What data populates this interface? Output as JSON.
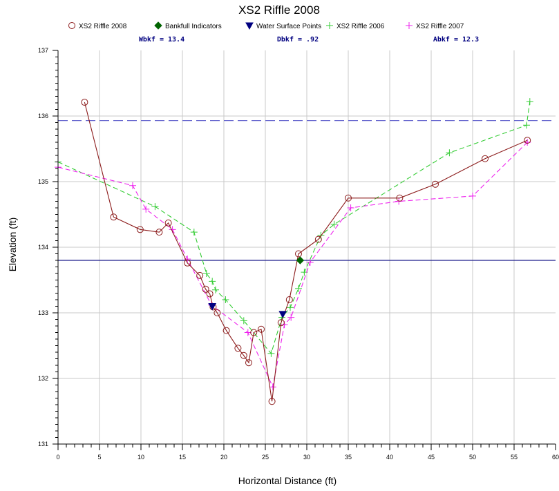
{
  "chart_data": {
    "type": "line",
    "title": "XS2 Riffle 2008",
    "xlabel": "Horizontal Distance (ft)",
    "ylabel": "Elevation (ft)",
    "xlim": [
      0,
      60
    ],
    "ylim": [
      131,
      137
    ],
    "x_ticks": [
      "0",
      "5",
      "10",
      "15",
      "20",
      "25",
      "30",
      "35",
      "40",
      "45",
      "50",
      "55",
      "60"
    ],
    "y_ticks": [
      "131",
      "132",
      "133",
      "134",
      "135",
      "136",
      "137"
    ],
    "grid": true,
    "legend_position": "top",
    "stats": [
      {
        "label": "Wbkf = 13.4"
      },
      {
        "label": "Dbkf = .92"
      },
      {
        "label": "Abkf = 12.3"
      }
    ],
    "reference_lines": [
      {
        "y": 135.93,
        "style": "dashed",
        "color": "#6a6ad0"
      },
      {
        "y": 133.8,
        "style": "solid",
        "color": "#1c1c8c"
      }
    ],
    "series": [
      {
        "name": "XS2 Riffle 2008",
        "color": "#8b1a1a",
        "marker": "circle",
        "line": "solid",
        "points": [
          [
            3.2,
            136.21
          ],
          [
            6.7,
            134.46
          ],
          [
            9.9,
            134.27
          ],
          [
            12.2,
            134.23
          ],
          [
            13.3,
            134.37
          ],
          [
            15.6,
            133.76
          ],
          [
            17.1,
            133.57
          ],
          [
            17.8,
            133.36
          ],
          [
            18.3,
            133.29
          ],
          [
            18.7,
            133.09
          ],
          [
            19.2,
            133.0
          ],
          [
            20.3,
            132.73
          ],
          [
            21.7,
            132.46
          ],
          [
            22.4,
            132.35
          ],
          [
            23.0,
            132.24
          ],
          [
            23.6,
            132.7
          ],
          [
            24.5,
            132.75
          ],
          [
            25.8,
            131.65
          ],
          [
            26.9,
            132.85
          ],
          [
            27.9,
            133.2
          ],
          [
            29.0,
            133.9
          ],
          [
            31.4,
            134.12
          ],
          [
            35.0,
            134.75
          ],
          [
            41.2,
            134.75
          ],
          [
            45.5,
            134.96
          ],
          [
            51.5,
            135.35
          ],
          [
            56.6,
            135.63
          ]
        ]
      },
      {
        "name": "Bankfull Indicators",
        "color": "#006400",
        "marker": "diamond",
        "line": "none",
        "points": [
          [
            29.2,
            133.8
          ]
        ]
      },
      {
        "name": "Water Surface Points",
        "color": "#000080",
        "marker": "triangle-down",
        "line": "none",
        "points": [
          [
            18.6,
            133.1
          ],
          [
            27.1,
            132.98
          ]
        ]
      },
      {
        "name": "XS2 Riffle 2006",
        "color": "#33cc33",
        "marker": "plus",
        "line": "dashed",
        "points": [
          [
            0,
            135.3
          ],
          [
            11.7,
            134.62
          ],
          [
            16.4,
            134.23
          ],
          [
            17.9,
            133.6
          ],
          [
            18.6,
            133.48
          ],
          [
            19.0,
            133.35
          ],
          [
            20.2,
            133.2
          ],
          [
            22.4,
            132.88
          ],
          [
            25.7,
            132.38
          ],
          [
            27.0,
            132.93
          ],
          [
            28.0,
            133.08
          ],
          [
            29.0,
            133.37
          ],
          [
            29.7,
            133.62
          ],
          [
            31.7,
            134.18
          ],
          [
            33.3,
            134.35
          ],
          [
            47.2,
            135.44
          ],
          [
            56.5,
            135.86
          ],
          [
            56.9,
            136.22
          ]
        ]
      },
      {
        "name": "XS2 Riffle 2007",
        "color": "#ee22ee",
        "marker": "plus",
        "line": "dashed",
        "points": [
          [
            0,
            135.22
          ],
          [
            9.0,
            134.94
          ],
          [
            10.6,
            134.58
          ],
          [
            13.8,
            134.27
          ],
          [
            15.6,
            133.82
          ],
          [
            18.5,
            133.12
          ],
          [
            22.9,
            132.7
          ],
          [
            25.9,
            131.87
          ],
          [
            27.3,
            132.82
          ],
          [
            28.1,
            132.93
          ],
          [
            30.4,
            133.77
          ],
          [
            35.3,
            134.6
          ],
          [
            41.1,
            134.7
          ],
          [
            50.0,
            134.78
          ],
          [
            56.6,
            135.6
          ]
        ]
      }
    ]
  }
}
